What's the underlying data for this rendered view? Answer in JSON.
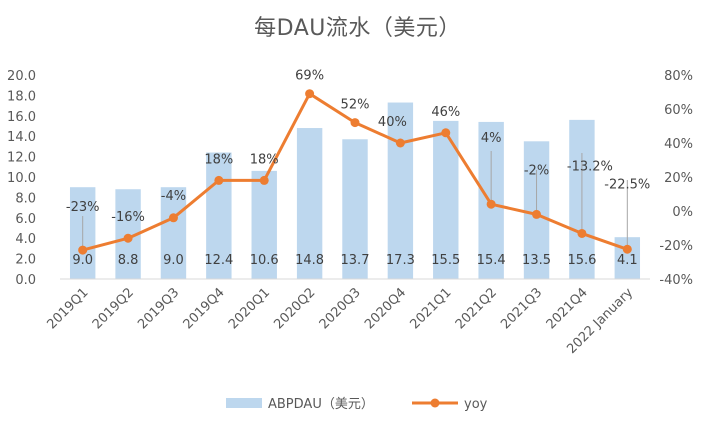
{
  "chart_data": {
    "type": "bar+line",
    "title": "每DAU流水（美元）",
    "categories": [
      "2019Q1",
      "2019Q2",
      "2019Q3",
      "2019Q4",
      "2020Q1",
      "2020Q2",
      "2020Q3",
      "2020Q4",
      "2021Q1",
      "2021Q2",
      "2021Q3",
      "2021Q4",
      "2022 January"
    ],
    "series": [
      {
        "name": "ABPDAU（美元）",
        "type": "bar",
        "axis": "left",
        "color": "#BDD7EE",
        "values": [
          9.0,
          8.8,
          9.0,
          12.4,
          10.6,
          14.8,
          13.7,
          17.3,
          15.5,
          15.4,
          13.5,
          15.6,
          4.1
        ],
        "labels": [
          "9.0",
          "8.8",
          "9.0",
          "12.4",
          "10.6",
          "14.8",
          "13.7",
          "17.3",
          "15.5",
          "15.4",
          "13.5",
          "15.6",
          "4.1"
        ]
      },
      {
        "name": "yoy",
        "type": "line",
        "axis": "right",
        "color": "#ED7D31",
        "values": [
          -23,
          -16,
          -4,
          18,
          18,
          69,
          52,
          40,
          46,
          4,
          -2,
          -13.2,
          -22.5
        ],
        "labels": [
          "-23%",
          "-16%",
          "-4%",
          "18%",
          "18%",
          "69%",
          "52%",
          "40%",
          "46%",
          "4%",
          "-2%",
          "-13.2%",
          "-22.5%"
        ]
      }
    ],
    "y_left": {
      "min": 0,
      "max": 20,
      "step": 2,
      "ticks": [
        "0.0",
        "2.0",
        "4.0",
        "6.0",
        "8.0",
        "10.0",
        "12.0",
        "14.0",
        "16.0",
        "18.0",
        "20.0"
      ]
    },
    "y_right": {
      "min": -40,
      "max": 80,
      "step": 20,
      "ticks": [
        "-40%",
        "-20%",
        "0%",
        "20%",
        "40%",
        "60%",
        "80%"
      ]
    },
    "grid": false,
    "legend": "bottom"
  }
}
